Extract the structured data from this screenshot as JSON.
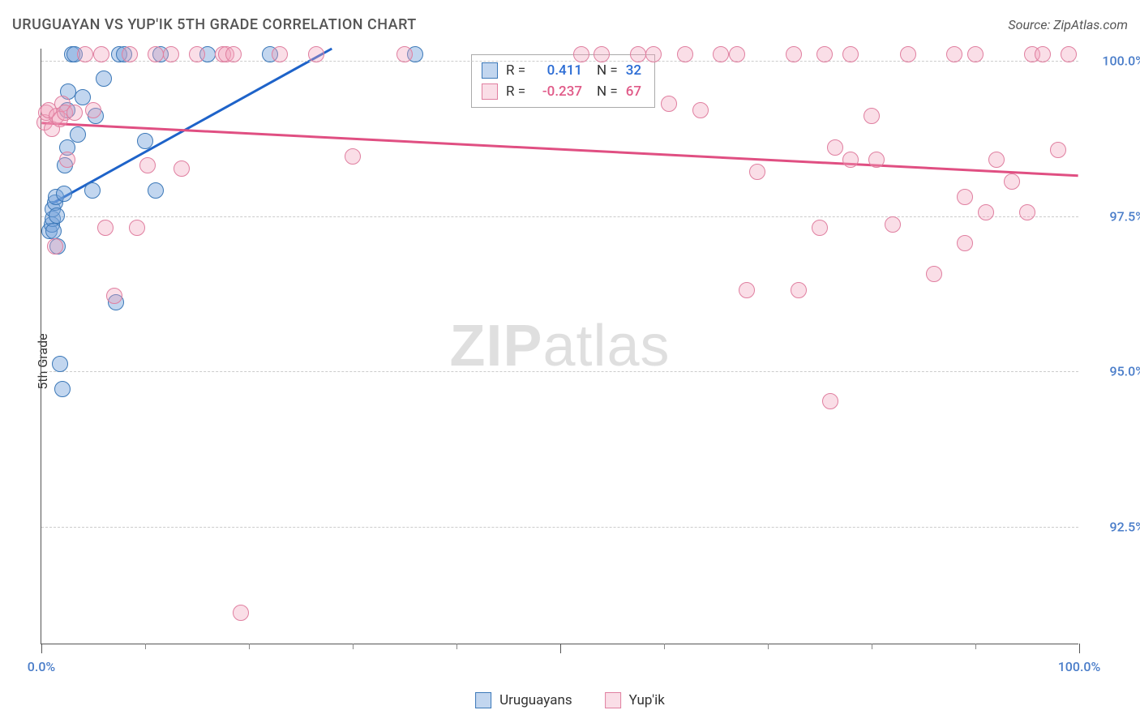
{
  "title": "URUGUAYAN VS YUP'IK 5TH GRADE CORRELATION CHART",
  "source": "Source: ZipAtlas.com",
  "y_axis_label": "5th Grade",
  "watermark_bold": "ZIP",
  "watermark_light": "atlas",
  "chart": {
    "type": "scatter",
    "xlim": [
      0,
      100
    ],
    "ylim": [
      90.6,
      100.2
    ],
    "y_ticks": [
      92.5,
      95.0,
      97.5,
      100.0
    ],
    "y_tick_labels": [
      "92.5%",
      "95.0%",
      "97.5%",
      "100.0%"
    ],
    "x_majors": [
      0,
      50,
      100
    ],
    "x_minors": [
      10,
      20,
      30,
      40,
      60,
      70,
      80,
      90
    ],
    "x_labels": {
      "0": "0.0%",
      "100": "100.0%"
    },
    "grid_color": "#cccccc",
    "background_color": "#ffffff",
    "series": [
      {
        "name": "Uruguayans",
        "color_fill": "rgba(120,165,220,0.45)",
        "color_stroke": "#3b78b8",
        "r_label": "R =",
        "r_value": "0.411",
        "n_label": "N =",
        "n_value": "32",
        "trend": {
          "x1": 1,
          "y1": 97.7,
          "x2": 28,
          "y2": 100.2,
          "stroke": "#1e63c9",
          "width": 3
        },
        "points": [
          [
            0.8,
            97.25
          ],
          [
            1.0,
            97.35
          ],
          [
            1.1,
            97.45
          ],
          [
            1.1,
            97.6
          ],
          [
            1.2,
            97.25
          ],
          [
            1.3,
            97.7
          ],
          [
            1.4,
            97.8
          ],
          [
            1.5,
            97.5
          ],
          [
            1.6,
            97.0
          ],
          [
            1.8,
            95.1
          ],
          [
            2.0,
            94.7
          ],
          [
            2.2,
            97.85
          ],
          [
            2.3,
            98.3
          ],
          [
            2.5,
            98.6
          ],
          [
            2.5,
            99.2
          ],
          [
            2.6,
            99.5
          ],
          [
            3.0,
            100.1
          ],
          [
            3.2,
            100.1
          ],
          [
            3.5,
            98.8
          ],
          [
            4.0,
            99.4
          ],
          [
            4.9,
            97.9
          ],
          [
            5.2,
            99.1
          ],
          [
            6.0,
            99.7
          ],
          [
            7.2,
            96.1
          ],
          [
            7.5,
            100.1
          ],
          [
            8.0,
            100.1
          ],
          [
            10.0,
            98.7
          ],
          [
            11.0,
            97.9
          ],
          [
            11.5,
            100.1
          ],
          [
            16.0,
            100.1
          ],
          [
            22.0,
            100.1
          ],
          [
            36.0,
            100.1
          ]
        ]
      },
      {
        "name": "Yup'ik",
        "color_fill": "rgba(240,160,185,0.35)",
        "color_stroke": "#e07fa0",
        "r_label": "R =",
        "r_value": "-0.237",
        "n_label": "N =",
        "n_value": "67",
        "trend": {
          "x1": 0,
          "y1": 99.0,
          "x2": 100,
          "y2": 98.15,
          "stroke": "#e04f82",
          "width": 3
        },
        "points": [
          [
            0.3,
            99.0
          ],
          [
            0.5,
            99.15
          ],
          [
            0.7,
            99.2
          ],
          [
            1.0,
            98.9
          ],
          [
            1.3,
            97.0
          ],
          [
            1.5,
            99.1
          ],
          [
            1.8,
            99.05
          ],
          [
            2.0,
            99.3
          ],
          [
            2.3,
            99.15
          ],
          [
            2.5,
            98.4
          ],
          [
            3.2,
            99.15
          ],
          [
            4.2,
            100.1
          ],
          [
            5.0,
            99.2
          ],
          [
            5.8,
            100.1
          ],
          [
            6.2,
            97.3
          ],
          [
            7.0,
            96.2
          ],
          [
            8.5,
            100.1
          ],
          [
            9.2,
            97.3
          ],
          [
            10.2,
            98.3
          ],
          [
            11.0,
            100.1
          ],
          [
            12.5,
            100.1
          ],
          [
            13.5,
            98.25
          ],
          [
            15.0,
            100.1
          ],
          [
            17.5,
            100.1
          ],
          [
            17.8,
            100.1
          ],
          [
            18.5,
            100.1
          ],
          [
            19.2,
            91.1
          ],
          [
            23.0,
            100.1
          ],
          [
            26.5,
            100.1
          ],
          [
            30.0,
            98.45
          ],
          [
            35.0,
            100.1
          ],
          [
            52.0,
            100.1
          ],
          [
            54.0,
            100.1
          ],
          [
            57.5,
            100.1
          ],
          [
            59.0,
            100.1
          ],
          [
            60.5,
            99.3
          ],
          [
            62.0,
            100.1
          ],
          [
            63.5,
            99.2
          ],
          [
            65.5,
            100.1
          ],
          [
            67.0,
            100.1
          ],
          [
            68.0,
            96.3
          ],
          [
            69.0,
            98.2
          ],
          [
            72.5,
            100.1
          ],
          [
            73.0,
            96.3
          ],
          [
            75.0,
            97.3
          ],
          [
            75.5,
            100.1
          ],
          [
            76.0,
            94.5
          ],
          [
            76.5,
            98.6
          ],
          [
            78.0,
            98.4
          ],
          [
            78.0,
            100.1
          ],
          [
            80.0,
            99.1
          ],
          [
            80.5,
            98.4
          ],
          [
            82.0,
            97.35
          ],
          [
            83.5,
            100.1
          ],
          [
            86.0,
            96.55
          ],
          [
            88.0,
            100.1
          ],
          [
            89.0,
            97.05
          ],
          [
            89.0,
            97.8
          ],
          [
            90.0,
            100.1
          ],
          [
            91.0,
            97.55
          ],
          [
            92.0,
            98.4
          ],
          [
            93.5,
            98.05
          ],
          [
            95.0,
            97.55
          ],
          [
            95.5,
            100.1
          ],
          [
            96.5,
            100.1
          ],
          [
            98.0,
            98.55
          ],
          [
            99.0,
            100.1
          ]
        ]
      }
    ]
  },
  "bottom_legend": [
    {
      "swatch": "b",
      "label": "Uruguayans"
    },
    {
      "swatch": "p",
      "label": "Yup'ik"
    }
  ]
}
